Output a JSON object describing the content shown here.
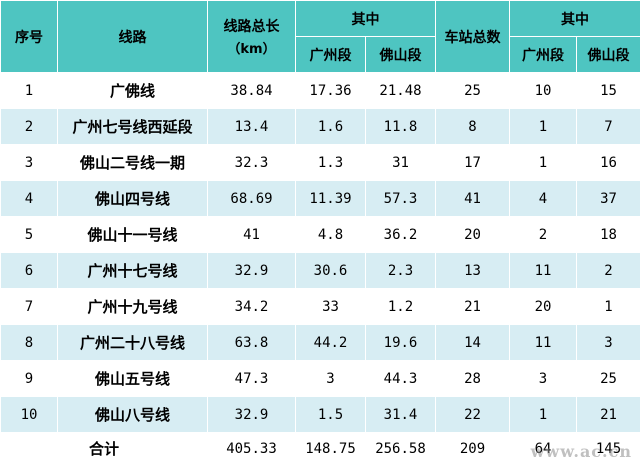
{
  "header": {
    "seq": "序号",
    "line": "线路",
    "length_total": "线路总长",
    "length_unit": "（km）",
    "of_which": "其中",
    "guangzhou_seg": "广州段",
    "foshan_seg": "佛山段",
    "stations_total": "车站总数"
  },
  "rows": [
    {
      "seq": "1",
      "line": "广佛线",
      "length": "38.84",
      "gz_len": "17.36",
      "fs_len": "21.48",
      "stations": "25",
      "gz_st": "10",
      "fs_st": "15"
    },
    {
      "seq": "2",
      "line": "广州七号线西延段",
      "length": "13.4",
      "gz_len": "1.6",
      "fs_len": "11.8",
      "stations": "8",
      "gz_st": "1",
      "fs_st": "7"
    },
    {
      "seq": "3",
      "line": "佛山二号线一期",
      "length": "32.3",
      "gz_len": "1.3",
      "fs_len": "31",
      "stations": "17",
      "gz_st": "1",
      "fs_st": "16"
    },
    {
      "seq": "4",
      "line": "佛山四号线",
      "length": "68.69",
      "gz_len": "11.39",
      "fs_len": "57.3",
      "stations": "41",
      "gz_st": "4",
      "fs_st": "37"
    },
    {
      "seq": "5",
      "line": "佛山十一号线",
      "length": "41",
      "gz_len": "4.8",
      "fs_len": "36.2",
      "stations": "20",
      "gz_st": "2",
      "fs_st": "18"
    },
    {
      "seq": "6",
      "line": "广州十七号线",
      "length": "32.9",
      "gz_len": "30.6",
      "fs_len": "2.3",
      "stations": "13",
      "gz_st": "11",
      "fs_st": "2"
    },
    {
      "seq": "7",
      "line": "广州十九号线",
      "length": "34.2",
      "gz_len": "33",
      "fs_len": "1.2",
      "stations": "21",
      "gz_st": "20",
      "fs_st": "1"
    },
    {
      "seq": "8",
      "line": "广州二十八号线",
      "length": "63.8",
      "gz_len": "44.2",
      "fs_len": "19.6",
      "stations": "14",
      "gz_st": "11",
      "fs_st": "3"
    },
    {
      "seq": "9",
      "line": "佛山五号线",
      "length": "47.3",
      "gz_len": "3",
      "fs_len": "44.3",
      "stations": "28",
      "gz_st": "3",
      "fs_st": "25"
    },
    {
      "seq": "10",
      "line": "佛山八号线",
      "length": "32.9",
      "gz_len": "1.5",
      "fs_len": "31.4",
      "stations": "22",
      "gz_st": "1",
      "fs_st": "21"
    }
  ],
  "total": {
    "label": "合计",
    "length": "405.33",
    "gz_len": "148.75",
    "fs_len": "256.58",
    "stations": "209",
    "gz_st": "64",
    "fs_st": "145"
  },
  "watermark": "www.ac.cn",
  "colors": {
    "header_bg": "#4ec5c1",
    "row_stripe": "#d7edf3"
  }
}
